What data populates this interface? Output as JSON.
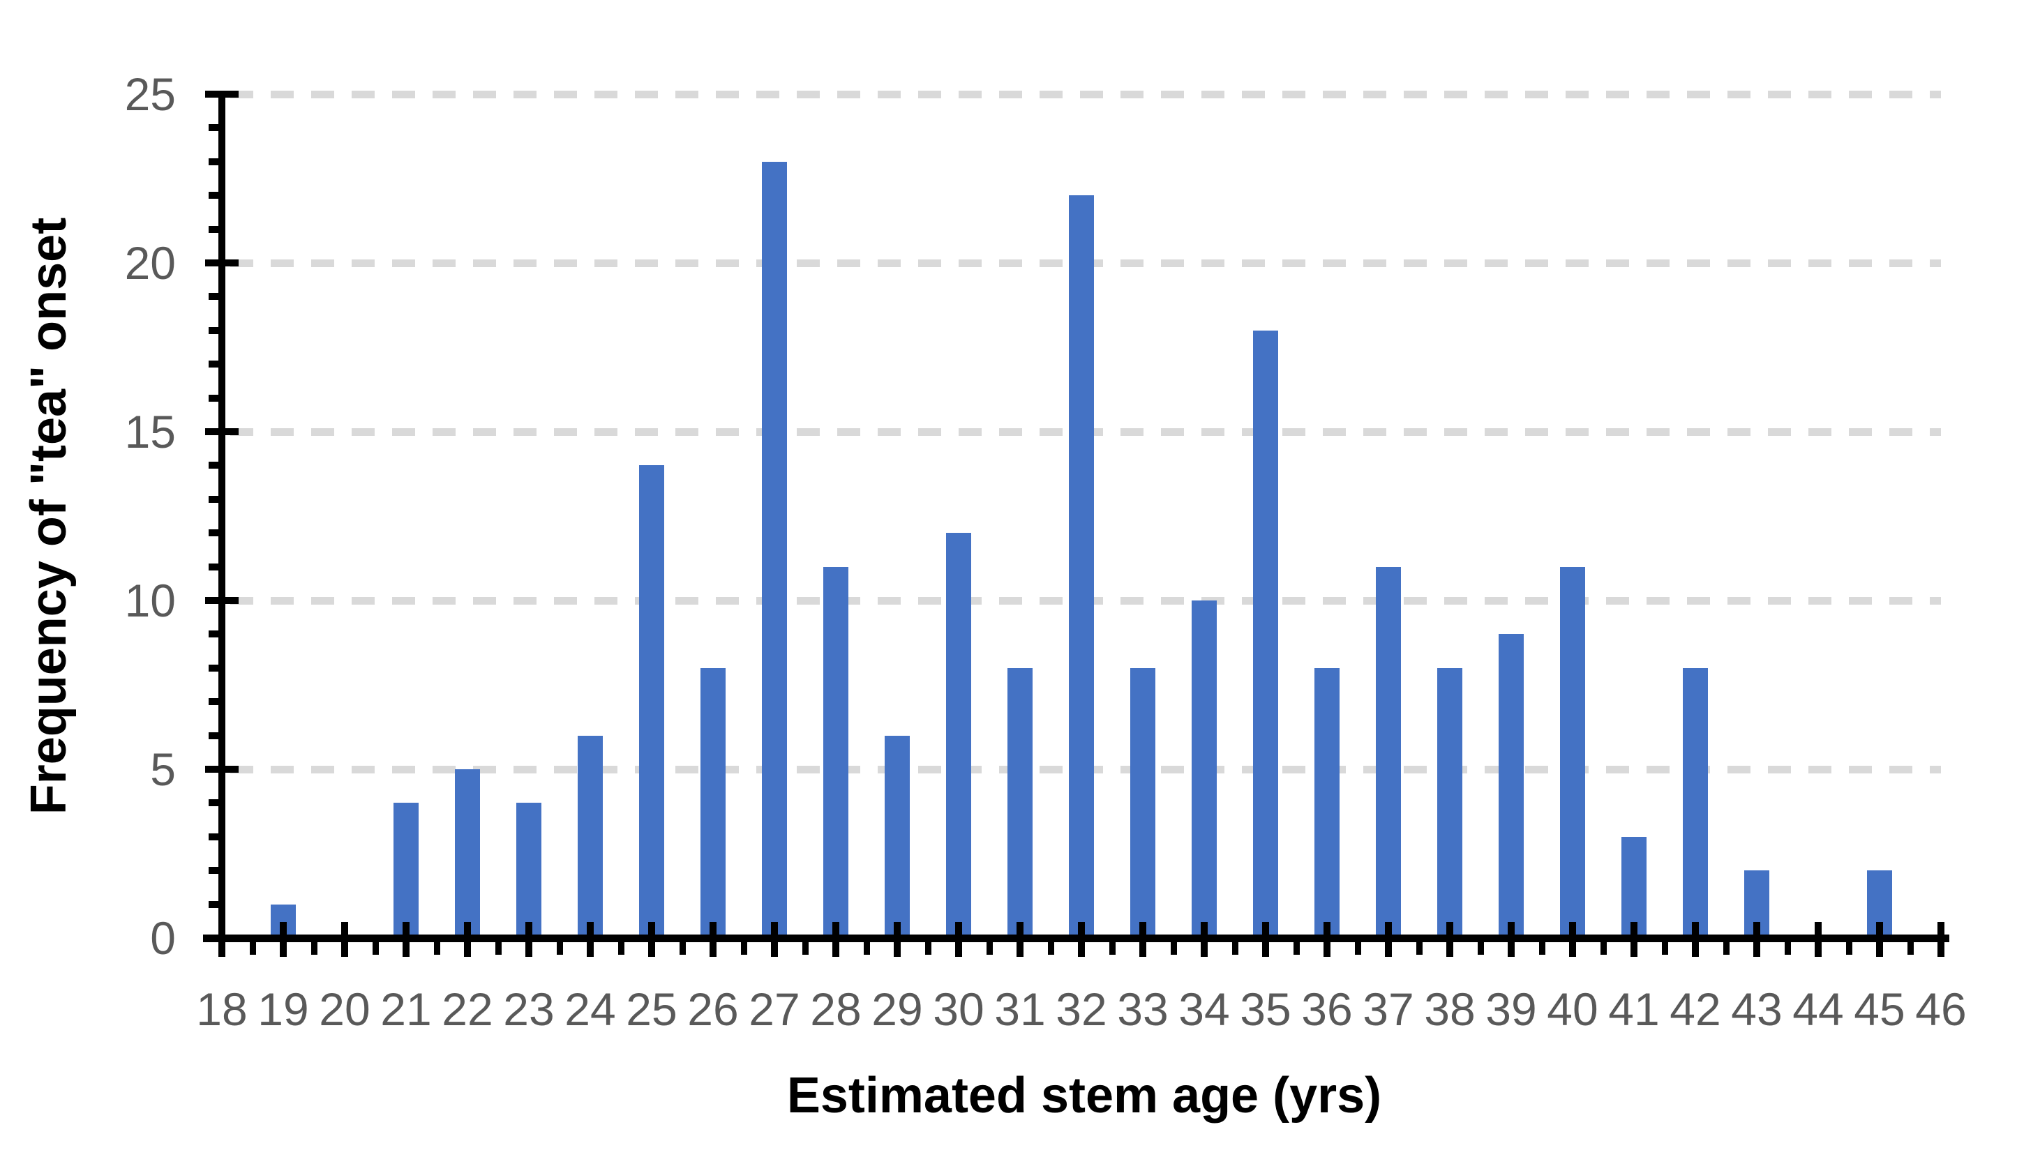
{
  "chart_data": {
    "type": "bar",
    "title": "",
    "xlabel": "Estimated stem age (yrs)",
    "ylabel": "Frequency of \"tea\" onset",
    "categories": [
      18,
      19,
      20,
      21,
      22,
      23,
      24,
      25,
      26,
      27,
      28,
      29,
      30,
      31,
      32,
      33,
      34,
      35,
      36,
      37,
      38,
      39,
      40,
      41,
      42,
      43,
      44,
      45,
      46
    ],
    "values": [
      0,
      1,
      0,
      4,
      5,
      4,
      6,
      14,
      8,
      23,
      11,
      6,
      12,
      8,
      22,
      8,
      10,
      18,
      8,
      11,
      8,
      9,
      11,
      3,
      8,
      2,
      0,
      2,
      0
    ],
    "ylim": [
      0,
      25
    ],
    "ytick_step": 5,
    "y_minor_tick_step": 1,
    "x_minor_ticks_at_halves": true,
    "y_tick_labels": [
      "0",
      "5",
      "10",
      "15",
      "20",
      "25"
    ],
    "grid": "horizontal dashed at major y ticks",
    "legend": "none",
    "colors": {
      "bar": "#4472C4",
      "gridline": "#D9D9D9",
      "tick_label": "#595959",
      "axis": "#000000",
      "axis_title": "#000000",
      "background": "#FFFFFF"
    }
  }
}
